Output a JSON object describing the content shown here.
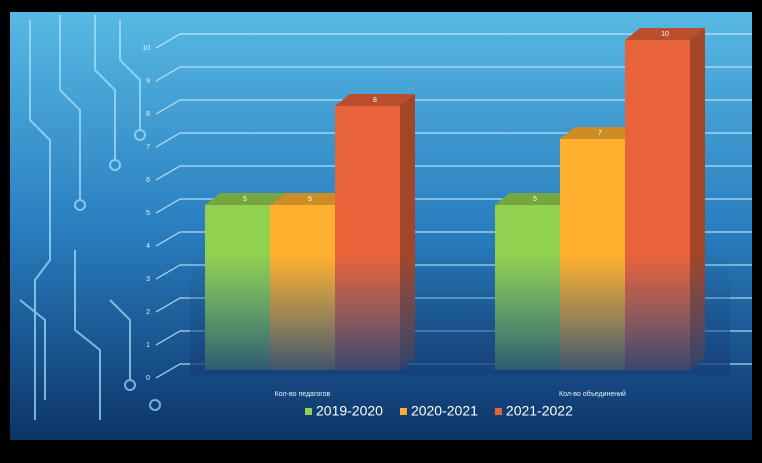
{
  "chart_data": {
    "type": "bar3d",
    "categories": [
      "Кол-во педагогов",
      "Кол-во объединений"
    ],
    "series": [
      {
        "name": "2019-2020",
        "color": "#92d050",
        "values": [
          5,
          5
        ]
      },
      {
        "name": "2020-2021",
        "color": "#ffb02e",
        "values": [
          5,
          7
        ]
      },
      {
        "name": "2021-2022",
        "color": "#e8623a",
        "values": [
          8,
          10
        ]
      }
    ],
    "ylim": [
      0,
      10
    ],
    "yticks": [
      0,
      1,
      2,
      3,
      4,
      5,
      6,
      7,
      8,
      9,
      10
    ],
    "grid": true
  }
}
